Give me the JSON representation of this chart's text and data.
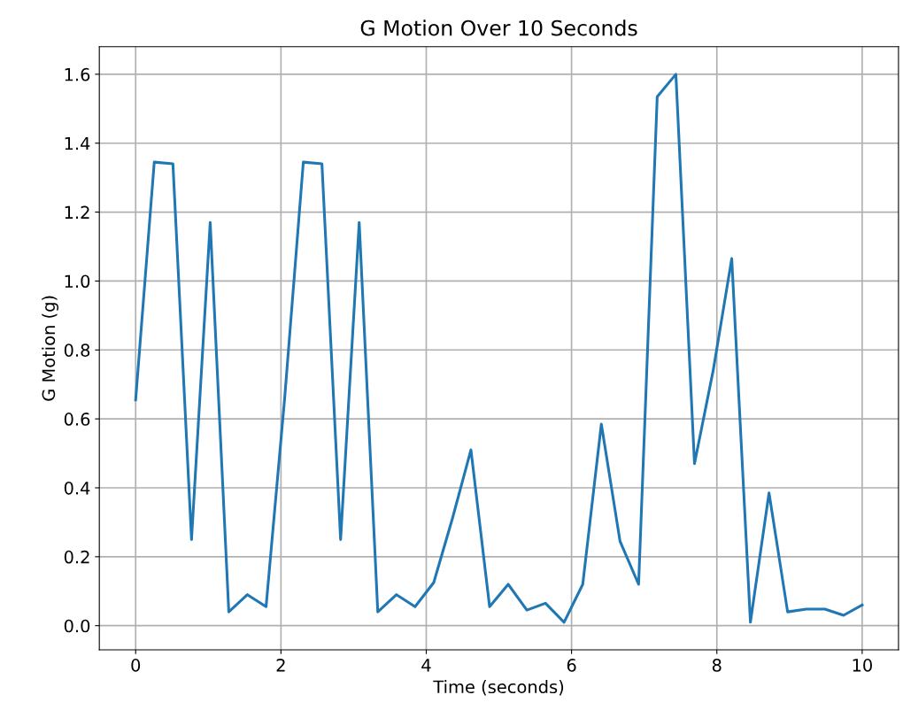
{
  "chart_data": {
    "type": "line",
    "title": "G Motion Over 10 Seconds",
    "xlabel": "Time (seconds)",
    "ylabel": "G Motion (g)",
    "x": [
      0,
      0.256,
      0.513,
      0.769,
      1.026,
      1.282,
      1.538,
      1.795,
      2.051,
      2.308,
      2.564,
      2.821,
      3.077,
      3.333,
      3.59,
      3.846,
      4.103,
      4.359,
      4.615,
      4.872,
      5.128,
      5.385,
      5.641,
      5.897,
      6.154,
      6.41,
      6.667,
      6.923,
      7.179,
      7.436,
      7.692,
      7.949,
      8.205,
      8.462,
      8.718,
      8.974,
      9.231,
      9.487,
      9.744,
      10
    ],
    "series": [
      {
        "color": "#1f77b4",
        "values": [
          0.655,
          1.345,
          1.34,
          0.25,
          1.17,
          0.04,
          0.09,
          0.055,
          0.66,
          1.345,
          1.34,
          0.25,
          1.17,
          0.04,
          0.09,
          0.055,
          0.125,
          0.31,
          0.51,
          0.055,
          0.12,
          0.045,
          0.065,
          0.01,
          0.12,
          0.585,
          0.245,
          0.12,
          1.535,
          1.6,
          0.47,
          0.74,
          1.065,
          0.01,
          0.385,
          0.04,
          0.048,
          0.048,
          0.03,
          0.06
        ]
      }
    ],
    "xlim": [
      -0.5,
      10.5
    ],
    "ylim": [
      -0.07,
      1.68
    ],
    "xticks": [
      0,
      2,
      4,
      6,
      8,
      10
    ],
    "yticks": [
      {
        "value": 0,
        "label": "0.0"
      },
      {
        "value": 0.2,
        "label": "0.2"
      },
      {
        "value": 0.4,
        "label": "0.4"
      },
      {
        "value": 0.6,
        "label": "0.6"
      },
      {
        "value": 0.8,
        "label": "0.8"
      },
      {
        "value": 1.0,
        "label": "1.0"
      },
      {
        "value": 1.2,
        "label": "1.2"
      },
      {
        "value": 1.4,
        "label": "1.4"
      },
      {
        "value": 1.6,
        "label": "1.6"
      }
    ],
    "grid": true,
    "marker": "none",
    "line_style": "solid"
  }
}
